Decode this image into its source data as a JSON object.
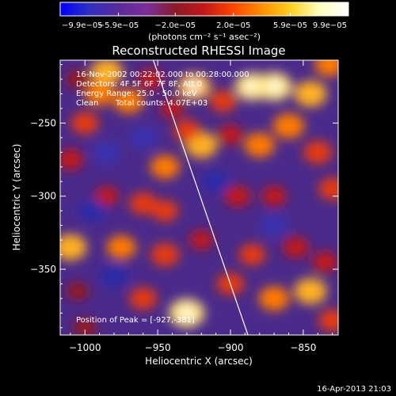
{
  "chart_data": {
    "type": "heatmap",
    "title": "Reconstructed RHESSI Image",
    "xlabel": "Heliocentric X (arcsec)",
    "ylabel": "Heliocentric Y (arcsec)",
    "xlim": [
      -1017,
      -826
    ],
    "ylim": [
      -395,
      -207
    ],
    "x_ticks": [
      -1000,
      -950,
      -900,
      -850
    ],
    "x_tick_labels": [
      "−1000",
      "−950",
      "−900",
      "−850"
    ],
    "y_ticks": [
      -250,
      -300,
      -350
    ],
    "y_tick_labels": [
      "−250",
      "−300",
      "−350"
    ],
    "colorbar": {
      "min": -9.9e-05,
      "max": 9.9e-05,
      "tick_values": [
        -9.9e-05,
        -5.9e-05,
        -2e-05,
        2e-05,
        5.9e-05,
        9.9e-05
      ],
      "tick_labels": [
        "−9.9e−05",
        "−5.9e−05",
        "−2.0e−05",
        "2.0e−05",
        "5.9e−05",
        "9.9e−05"
      ],
      "unit_label": "(photons cm⁻² s⁻¹ asec⁻²)",
      "colors": [
        "#0000ff",
        "#3030c0",
        "#5a2a9a",
        "#7a2e9a",
        "#8a1a2a",
        "#c41818",
        "#ff4500",
        "#ff9000",
        "#ffd020",
        "#ffffc0",
        "#ffffff"
      ]
    },
    "annotations": {
      "time_range": "16-Nov-2002 00:22:02.000 to 00:28:00.000",
      "detectors": "Detectors: 4F 5F 6F 7F 8F, Att 0",
      "energy_range": "Energy Range: 25.0 - 50.0 keV",
      "clean_method": "Clean",
      "total_counts": "Total counts: 4.07E+03",
      "peak_position": "Position of Peak = [-927,-381]"
    },
    "peak": [
      -927,
      -381
    ],
    "limb_line": [
      [
        -953,
        -207
      ],
      [
        -888,
        -395
      ]
    ],
    "blobs": [
      {
        "x": -1005,
        "y": -220,
        "v": 0.35
      },
      {
        "x": -990,
        "y": -230,
        "v": 0.7
      },
      {
        "x": -1000,
        "y": -250,
        "v": 0.6
      },
      {
        "x": -985,
        "y": -215,
        "v": 0.85
      },
      {
        "x": -970,
        "y": -235,
        "v": 0.75
      },
      {
        "x": -955,
        "y": -220,
        "v": 0.5
      },
      {
        "x": -940,
        "y": -240,
        "v": 0.4
      },
      {
        "x": -925,
        "y": -225,
        "v": 0.9
      },
      {
        "x": -905,
        "y": -235,
        "v": 0.55
      },
      {
        "x": -885,
        "y": -225,
        "v": 0.95
      },
      {
        "x": -870,
        "y": -225,
        "v": 1.0
      },
      {
        "x": -845,
        "y": -230,
        "v": 0.85
      },
      {
        "x": -832,
        "y": -210,
        "v": 0.7
      },
      {
        "x": -860,
        "y": -252,
        "v": 0.8
      },
      {
        "x": -880,
        "y": -265,
        "v": 0.75
      },
      {
        "x": -840,
        "y": -270,
        "v": 0.65
      },
      {
        "x": -900,
        "y": -258,
        "v": 0.45
      },
      {
        "x": -920,
        "y": -265,
        "v": 0.85
      },
      {
        "x": -930,
        "y": -255,
        "v": 0.55
      },
      {
        "x": -945,
        "y": -280,
        "v": 0.7
      },
      {
        "x": -1010,
        "y": -275,
        "v": 0.5
      },
      {
        "x": -985,
        "y": -300,
        "v": 0.4
      },
      {
        "x": -960,
        "y": -305,
        "v": 0.6
      },
      {
        "x": -945,
        "y": -310,
        "v": 0.55
      },
      {
        "x": -895,
        "y": -300,
        "v": 0.5
      },
      {
        "x": -870,
        "y": -300,
        "v": 0.45
      },
      {
        "x": -830,
        "y": -295,
        "v": 0.6
      },
      {
        "x": -1010,
        "y": -335,
        "v": 0.85
      },
      {
        "x": -975,
        "y": -335,
        "v": 0.7
      },
      {
        "x": -945,
        "y": -340,
        "v": 0.65
      },
      {
        "x": -920,
        "y": -330,
        "v": 0.4
      },
      {
        "x": -885,
        "y": -340,
        "v": 0.55
      },
      {
        "x": -855,
        "y": -335,
        "v": 0.5
      },
      {
        "x": -835,
        "y": -345,
        "v": 0.5
      },
      {
        "x": -1005,
        "y": -365,
        "v": 0.3
      },
      {
        "x": -960,
        "y": -370,
        "v": 0.6
      },
      {
        "x": -930,
        "y": -380,
        "v": 1.0
      },
      {
        "x": -900,
        "y": -360,
        "v": 0.6
      },
      {
        "x": -870,
        "y": -370,
        "v": 0.75
      },
      {
        "x": -845,
        "y": -365,
        "v": 0.85
      },
      {
        "x": -830,
        "y": -385,
        "v": 0.6
      },
      {
        "x": -1000,
        "y": -390,
        "v": 0.35
      },
      {
        "x": -980,
        "y": -355,
        "v": -0.35
      },
      {
        "x": -995,
        "y": -310,
        "v": -0.4
      },
      {
        "x": -960,
        "y": -260,
        "v": -0.3
      },
      {
        "x": -910,
        "y": -290,
        "v": -0.35
      },
      {
        "x": -870,
        "y": -320,
        "v": -0.3
      },
      {
        "x": -985,
        "y": -270,
        "v": -0.25
      }
    ]
  },
  "footer": {
    "date_stamp": "16-Apr-2013 21:03"
  },
  "theme": {
    "background": "#000000",
    "foreground": "#ffffff",
    "floor_color": "#4a2a8a"
  }
}
